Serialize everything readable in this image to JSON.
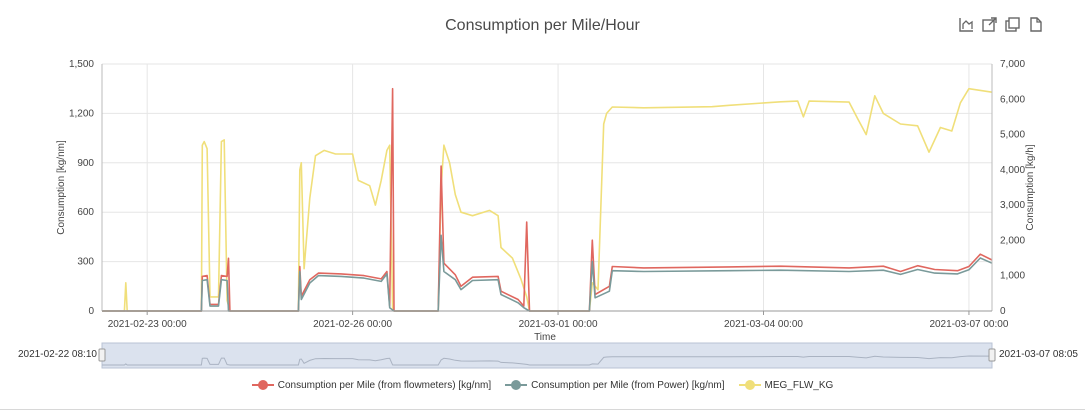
{
  "toolbar": {
    "icons": [
      "chart-type-icon",
      "open-external-icon",
      "copy-icon",
      "document-icon"
    ]
  },
  "navigator": {
    "start_label": "2021-02-22 08:10",
    "end_label": "2021-03-07 08:05"
  },
  "colors": {
    "flowmeters": "#e0675f",
    "power": "#7a9a9a",
    "meg": "#f0df7a"
  },
  "chart_data": {
    "type": "line",
    "title": "Consumption per Mile/Hour",
    "xlabel": "Time",
    "ylabel_left": "Consumption [kg/nm]",
    "ylabel_right": "Consumption [kg/h]",
    "x_range": [
      "2021-02-22 08:10",
      "2021-03-07 08:05"
    ],
    "x_ticks": [
      "2021-02-23 00:00",
      "2021-02-26 00:00",
      "2021-03-01 00:00",
      "2021-03-04 00:00",
      "2021-03-07 00:00"
    ],
    "ylim_left": [
      0,
      1500
    ],
    "ylim_right": [
      0,
      7000
    ],
    "y_ticks_left": [
      "0",
      "300",
      "600",
      "900",
      "1,200",
      "1,500"
    ],
    "y_ticks_right": [
      "0",
      "1,000",
      "2,000",
      "3,000",
      "4,000",
      "5,000",
      "6,000",
      "7,000"
    ],
    "grid": true,
    "legend": "bottom",
    "series": [
      {
        "name": "Consumption per Mile (from flowmeters) [kg/nm]",
        "axis": "left",
        "points": [
          [
            "2021-02-22 08:10",
            0
          ],
          [
            "2021-02-23 19:00",
            0
          ],
          [
            "2021-02-23 19:20",
            210
          ],
          [
            "2021-02-23 21:00",
            215
          ],
          [
            "2021-02-23 22:00",
            40
          ],
          [
            "2021-02-24 01:00",
            40
          ],
          [
            "2021-02-24 02:00",
            215
          ],
          [
            "2021-02-24 04:00",
            210
          ],
          [
            "2021-02-24 04:30",
            320
          ],
          [
            "2021-02-24 05:00",
            0
          ],
          [
            "2021-02-25 05:00",
            0
          ],
          [
            "2021-02-25 05:30",
            270
          ],
          [
            "2021-02-25 06:00",
            90
          ],
          [
            "2021-02-25 09:00",
            190
          ],
          [
            "2021-02-25 12:00",
            230
          ],
          [
            "2021-02-25 20:00",
            225
          ],
          [
            "2021-02-26 04:00",
            215
          ],
          [
            "2021-02-26 10:00",
            195
          ],
          [
            "2021-02-26 12:00",
            240
          ],
          [
            "2021-02-26 13:00",
            30
          ],
          [
            "2021-02-26 14:00",
            1350
          ],
          [
            "2021-02-26 14:30",
            0
          ],
          [
            "2021-02-27 06:00",
            0
          ],
          [
            "2021-02-27 07:00",
            880
          ],
          [
            "2021-02-27 08:00",
            290
          ],
          [
            "2021-02-27 12:00",
            220
          ],
          [
            "2021-02-27 14:00",
            150
          ],
          [
            "2021-02-27 18:00",
            205
          ],
          [
            "2021-02-28 03:00",
            210
          ],
          [
            "2021-02-28 04:00",
            120
          ],
          [
            "2021-02-28 10:00",
            70
          ],
          [
            "2021-02-28 12:00",
            30
          ],
          [
            "2021-02-28 13:00",
            540
          ],
          [
            "2021-02-28 14:00",
            0
          ],
          [
            "2021-03-01 11:00",
            0
          ],
          [
            "2021-03-01 12:00",
            430
          ],
          [
            "2021-03-01 13:00",
            100
          ],
          [
            "2021-03-01 18:00",
            150
          ],
          [
            "2021-03-01 19:00",
            270
          ],
          [
            "2021-03-02 06:00",
            262
          ],
          [
            "2021-03-03 12:00",
            268
          ],
          [
            "2021-03-04 06:00",
            272
          ],
          [
            "2021-03-05 06:00",
            262
          ],
          [
            "2021-03-05 18:00",
            272
          ],
          [
            "2021-03-06 00:00",
            240
          ],
          [
            "2021-03-06 06:00",
            275
          ],
          [
            "2021-03-06 12:00",
            252
          ],
          [
            "2021-03-06 20:00",
            245
          ],
          [
            "2021-03-07 00:00",
            270
          ],
          [
            "2021-03-07 04:00",
            345
          ],
          [
            "2021-03-07 08:05",
            310
          ]
        ]
      },
      {
        "name": "Consumption per Mile (from Power) [kg/nm]",
        "axis": "left",
        "points": [
          [
            "2021-02-22 08:10",
            0
          ],
          [
            "2021-02-23 19:00",
            0
          ],
          [
            "2021-02-23 19:20",
            185
          ],
          [
            "2021-02-23 21:00",
            190
          ],
          [
            "2021-02-23 22:00",
            30
          ],
          [
            "2021-02-24 01:00",
            30
          ],
          [
            "2021-02-24 02:00",
            190
          ],
          [
            "2021-02-24 04:00",
            185
          ],
          [
            "2021-02-24 04:30",
            0
          ],
          [
            "2021-02-25 05:00",
            0
          ],
          [
            "2021-02-25 05:30",
            240
          ],
          [
            "2021-02-25 06:00",
            70
          ],
          [
            "2021-02-25 09:00",
            170
          ],
          [
            "2021-02-25 12:00",
            215
          ],
          [
            "2021-02-25 20:00",
            210
          ],
          [
            "2021-02-26 04:00",
            200
          ],
          [
            "2021-02-26 10:00",
            180
          ],
          [
            "2021-02-26 12:00",
            225
          ],
          [
            "2021-02-26 13:00",
            20
          ],
          [
            "2021-02-26 14:30",
            0
          ],
          [
            "2021-02-27 06:00",
            0
          ],
          [
            "2021-02-27 07:00",
            460
          ],
          [
            "2021-02-27 08:00",
            240
          ],
          [
            "2021-02-27 12:00",
            190
          ],
          [
            "2021-02-27 14:00",
            130
          ],
          [
            "2021-02-27 18:00",
            185
          ],
          [
            "2021-02-28 03:00",
            190
          ],
          [
            "2021-02-28 04:00",
            100
          ],
          [
            "2021-02-28 10:00",
            50
          ],
          [
            "2021-02-28 12:00",
            20
          ],
          [
            "2021-02-28 14:00",
            0
          ],
          [
            "2021-03-01 11:00",
            0
          ],
          [
            "2021-03-01 12:00",
            300
          ],
          [
            "2021-03-01 13:00",
            80
          ],
          [
            "2021-03-01 18:00",
            120
          ],
          [
            "2021-03-01 19:00",
            245
          ],
          [
            "2021-03-02 06:00",
            240
          ],
          [
            "2021-03-03 12:00",
            245
          ],
          [
            "2021-03-04 06:00",
            248
          ],
          [
            "2021-03-05 06:00",
            240
          ],
          [
            "2021-03-05 18:00",
            248
          ],
          [
            "2021-03-06 00:00",
            222
          ],
          [
            "2021-03-06 06:00",
            252
          ],
          [
            "2021-03-06 12:00",
            230
          ],
          [
            "2021-03-06 20:00",
            225
          ],
          [
            "2021-03-07 00:00",
            250
          ],
          [
            "2021-03-07 04:00",
            322
          ],
          [
            "2021-03-07 08:05",
            290
          ]
        ]
      },
      {
        "name": "MEG_FLW_KG",
        "axis": "right",
        "points": [
          [
            "2021-02-22 08:10",
            0
          ],
          [
            "2021-02-22 16:00",
            0
          ],
          [
            "2021-02-22 16:30",
            800
          ],
          [
            "2021-02-22 17:00",
            0
          ],
          [
            "2021-02-23 19:00",
            0
          ],
          [
            "2021-02-23 19:20",
            4700
          ],
          [
            "2021-02-23 20:00",
            4800
          ],
          [
            "2021-02-23 21:00",
            4600
          ],
          [
            "2021-02-23 22:00",
            400
          ],
          [
            "2021-02-24 01:00",
            400
          ],
          [
            "2021-02-24 02:00",
            4800
          ],
          [
            "2021-02-24 03:00",
            4850
          ],
          [
            "2021-02-24 04:00",
            300
          ],
          [
            "2021-02-24 05:00",
            0
          ],
          [
            "2021-02-25 05:00",
            0
          ],
          [
            "2021-02-25 05:30",
            4000
          ],
          [
            "2021-02-25 06:00",
            4200
          ],
          [
            "2021-02-25 07:00",
            1200
          ],
          [
            "2021-02-25 09:00",
            3200
          ],
          [
            "2021-02-25 11:00",
            4400
          ],
          [
            "2021-02-25 14:00",
            4550
          ],
          [
            "2021-02-25 18:00",
            4450
          ],
          [
            "2021-02-26 00:00",
            4450
          ],
          [
            "2021-02-26 02:00",
            3700
          ],
          [
            "2021-02-26 06:00",
            3550
          ],
          [
            "2021-02-26 08:00",
            3000
          ],
          [
            "2021-02-26 10:00",
            3700
          ],
          [
            "2021-02-26 12:00",
            4550
          ],
          [
            "2021-02-26 13:00",
            4700
          ],
          [
            "2021-02-26 14:00",
            100
          ],
          [
            "2021-02-26 14:30",
            0
          ],
          [
            "2021-02-27 06:00",
            0
          ],
          [
            "2021-02-27 07:00",
            3500
          ],
          [
            "2021-02-27 08:00",
            4700
          ],
          [
            "2021-02-27 10:00",
            4200
          ],
          [
            "2021-02-27 12:00",
            3300
          ],
          [
            "2021-02-27 14:00",
            2800
          ],
          [
            "2021-02-27 18:00",
            2700
          ],
          [
            "2021-02-28 00:00",
            2850
          ],
          [
            "2021-02-28 03:00",
            2700
          ],
          [
            "2021-02-28 04:00",
            1800
          ],
          [
            "2021-02-28 08:00",
            1500
          ],
          [
            "2021-02-28 11:00",
            900
          ],
          [
            "2021-02-28 13:00",
            400
          ],
          [
            "2021-02-28 14:00",
            0
          ],
          [
            "2021-03-01 11:00",
            0
          ],
          [
            "2021-03-01 12:00",
            800
          ],
          [
            "2021-03-01 14:00",
            600
          ],
          [
            "2021-03-01 16:00",
            5300
          ],
          [
            "2021-03-01 17:00",
            5600
          ],
          [
            "2021-03-01 19:00",
            5780
          ],
          [
            "2021-03-02 06:00",
            5760
          ],
          [
            "2021-03-03 06:00",
            5790
          ],
          [
            "2021-03-03 12:00",
            5830
          ],
          [
            "2021-03-04 06:00",
            5930
          ],
          [
            "2021-03-04 12:00",
            5950
          ],
          [
            "2021-03-04 14:00",
            5500
          ],
          [
            "2021-03-04 16:00",
            5950
          ],
          [
            "2021-03-05 06:00",
            5920
          ],
          [
            "2021-03-05 09:00",
            5450
          ],
          [
            "2021-03-05 12:00",
            5000
          ],
          [
            "2021-03-05 15:00",
            6100
          ],
          [
            "2021-03-05 18:00",
            5600
          ],
          [
            "2021-03-06 00:00",
            5300
          ],
          [
            "2021-03-06 06:00",
            5250
          ],
          [
            "2021-03-06 10:00",
            4500
          ],
          [
            "2021-03-06 14:00",
            5200
          ],
          [
            "2021-03-06 18:00",
            5100
          ],
          [
            "2021-03-06 21:00",
            5900
          ],
          [
            "2021-03-07 00:00",
            6300
          ],
          [
            "2021-03-07 08:05",
            6200
          ]
        ]
      }
    ]
  }
}
